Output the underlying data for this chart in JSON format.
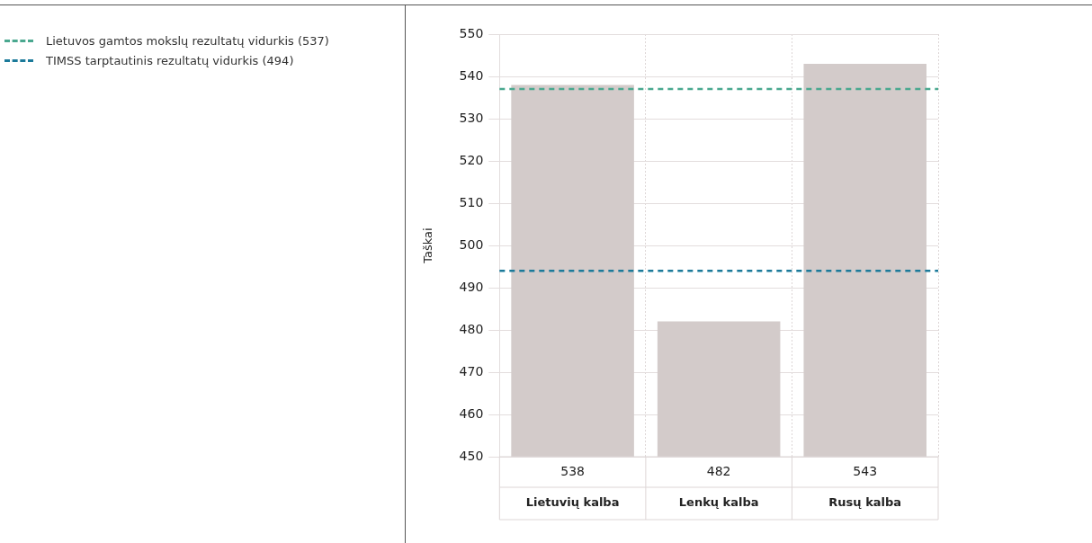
{
  "chart_data": {
    "type": "bar",
    "ylabel": "Taškai",
    "categories": [
      "Lietuvių kalba",
      "Lenkų kalba",
      "Rusų kalba"
    ],
    "values": [
      538,
      482,
      543
    ],
    "color": "#d3cbca",
    "ylim": [
      450,
      550
    ],
    "yticks": [
      450,
      460,
      470,
      480,
      490,
      500,
      510,
      520,
      530,
      540,
      550
    ],
    "grid": true,
    "data_labels": true,
    "legend": "left",
    "ref_lines": [
      {
        "axis": "y",
        "value": 537,
        "label": "Lietuvos gamtos mokslų rezultatų vidurkis (537)",
        "color": "#4aa88f",
        "line_style": "dashed"
      },
      {
        "axis": "y",
        "value": 494,
        "label": "TIMSS tarptautinis rezultatų vidurkis (494)",
        "color": "#1b7a9a",
        "line_style": "dashed"
      }
    ]
  }
}
